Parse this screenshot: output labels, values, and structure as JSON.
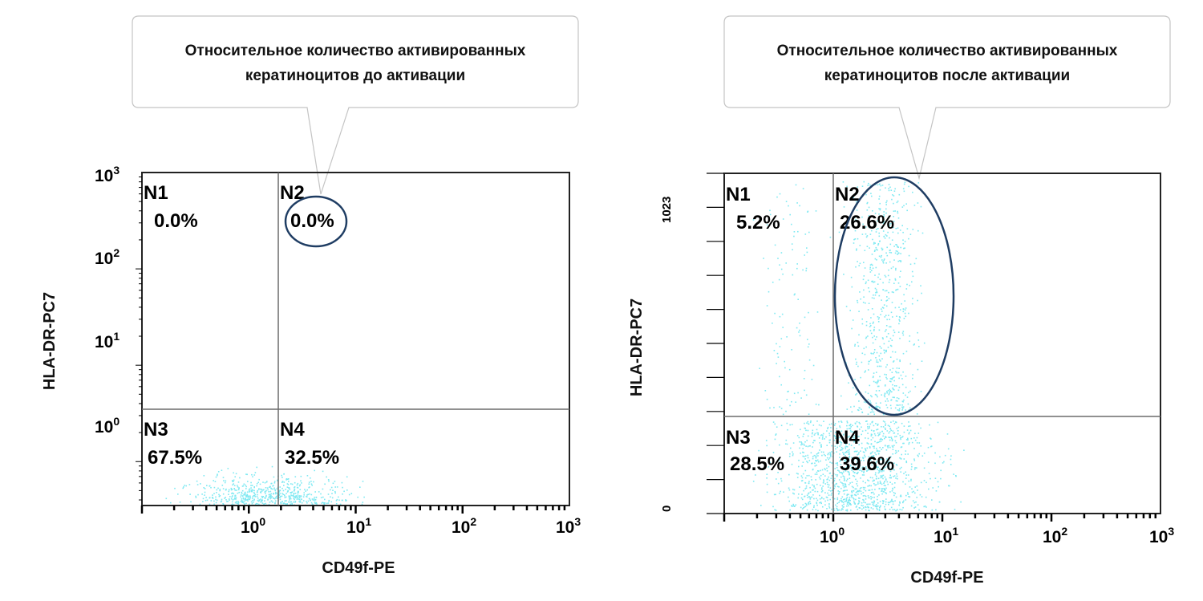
{
  "colors": {
    "dots": "#7fe9f2",
    "ellipse": "#1f3d63",
    "frame": "#222222",
    "gate": "#6b6b6b",
    "callout_border": "#c4c4c4"
  },
  "chart_data": [
    {
      "type": "scatter",
      "callout": [
        "Относительное количество активированных",
        "кератиноцитов до активации"
      ],
      "xlabel": "CD49f-PE",
      "ylabel": "HLA-DR-PC7",
      "x_scale": "log",
      "xlim": [
        0.1,
        1000
      ],
      "y_scale": "log",
      "ylim": [
        0.35,
        1000
      ],
      "x_ticks": [
        {
          "base": "10",
          "exp": "0",
          "value": 1
        },
        {
          "base": "10",
          "exp": "1",
          "value": 10
        },
        {
          "base": "10",
          "exp": "2",
          "value": 100
        },
        {
          "base": "10",
          "exp": "3",
          "value": 1000
        }
      ],
      "y_ticks": [
        {
          "base": "10",
          "exp": "0",
          "value": 1
        },
        {
          "base": "10",
          "exp": "1",
          "value": 10
        },
        {
          "base": "10",
          "exp": "2",
          "value": 100
        },
        {
          "base": "10",
          "exp": "3",
          "value": 1000
        }
      ],
      "gate": {
        "x": 1.75,
        "y": 1.4
      },
      "quadrants": [
        {
          "id": "N1",
          "value": "0.0%"
        },
        {
          "id": "N2",
          "value": "0.0%"
        },
        {
          "id": "N3",
          "value": "67.5%"
        },
        {
          "id": "N4",
          "value": "32.5%"
        }
      ],
      "highlight": {
        "quadrant": "N2",
        "shape": "ellipse"
      },
      "dot_clouds": [
        {
          "x_range": [
            0.12,
            20
          ],
          "y_range": [
            0.35,
            0.95
          ],
          "count": 650
        }
      ]
    },
    {
      "type": "scatter",
      "callout": [
        "Относительное количество активированных",
        "кератиноцитов после активации"
      ],
      "xlabel": "CD49f-PE",
      "ylabel": "HLA-DR-PC7",
      "x_scale": "log",
      "xlim": [
        0.1,
        1000
      ],
      "y_scale": "linear",
      "ylim": [
        0,
        1023
      ],
      "x_ticks": [
        {
          "base": "10",
          "exp": "0",
          "value": 1
        },
        {
          "base": "10",
          "exp": "1",
          "value": 10
        },
        {
          "base": "10",
          "exp": "2",
          "value": 100
        },
        {
          "base": "10",
          "exp": "3",
          "value": 1000
        }
      ],
      "y_ticks": [
        {
          "label": "0",
          "value": 0
        },
        {
          "label": "1023",
          "value": 1023
        }
      ],
      "gate": {
        "x": 1.0,
        "y": 295
      },
      "quadrants": [
        {
          "id": "N1",
          "value": "5.2%"
        },
        {
          "id": "N2",
          "value": "26.6%"
        },
        {
          "id": "N3",
          "value": "28.5%"
        },
        {
          "id": "N4",
          "value": "39.6%"
        }
      ],
      "highlight": {
        "quadrant": "N2",
        "shape": "ellipse"
      },
      "dot_clouds": [
        {
          "x_range": [
            0.15,
            18
          ],
          "y_range": [
            10,
            280
          ],
          "count": 1300
        },
        {
          "x_range": [
            1.0,
            8
          ],
          "y_range": [
            300,
            1000
          ],
          "count": 650
        },
        {
          "x_range": [
            0.15,
            1.0
          ],
          "y_range": [
            300,
            1000
          ],
          "count": 110
        }
      ]
    }
  ]
}
